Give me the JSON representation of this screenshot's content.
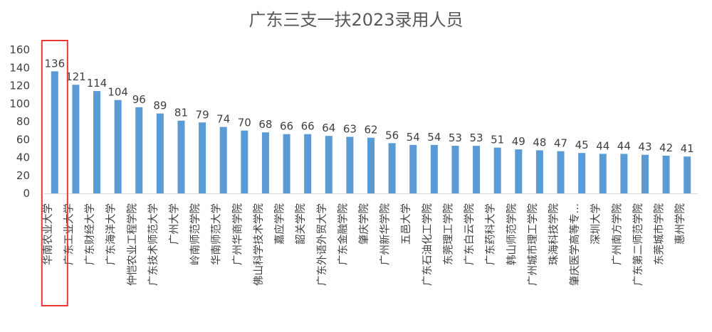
{
  "chart_data": {
    "type": "bar",
    "title": "广东三支一扶2023录用人员",
    "xlabel": "",
    "ylabel": "",
    "ylim": [
      0,
      160
    ],
    "yticks": [
      0,
      20,
      40,
      60,
      80,
      100,
      120,
      140,
      160
    ],
    "grid": false,
    "legend": "none",
    "bar_color": "#5B9BD5",
    "highlight_color": "#E53935",
    "highlight_index": 0,
    "categories": [
      "华南农业大学",
      "广东工业大学",
      "广东财经大学",
      "广东海洋大学",
      "仲恺农业工程学院",
      "广东技术师范大学",
      "广州大学",
      "岭南师范学院",
      "华南师范大学",
      "广州华商学院",
      "佛山科学技术学院",
      "嘉应学院",
      "韶关学院",
      "广东外语外贸大学",
      "广东金融学院",
      "肇庆学院",
      "广州新华学院",
      "五邑大学",
      "广东石油化工学院",
      "东莞理工学院",
      "广东白云学院",
      "广东药科大学",
      "韩山师范学院",
      "广州城市理工学院",
      "珠海科技学院",
      "肇庆医学高等专…",
      "深圳大学",
      "广州南方学院",
      "广东第二师范学院",
      "东莞城市学院",
      "惠州学院"
    ],
    "values": [
      136,
      121,
      114,
      104,
      96,
      89,
      81,
      79,
      74,
      70,
      68,
      66,
      66,
      64,
      63,
      62,
      56,
      54,
      54,
      53,
      53,
      51,
      49,
      48,
      47,
      45,
      44,
      44,
      43,
      42,
      41
    ]
  }
}
